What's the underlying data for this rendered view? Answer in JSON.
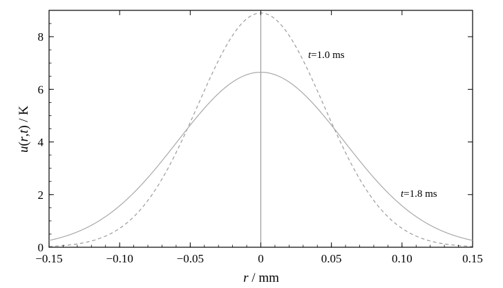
{
  "chart_data": {
    "type": "line",
    "xlabel": "r / mm",
    "ylabel": "u(r,t) / K",
    "xlim": [
      -0.15,
      0.15
    ],
    "ylim": [
      0,
      9
    ],
    "xticks": [
      -0.15,
      -0.1,
      -0.05,
      0,
      0.05,
      0.1,
      0.15
    ],
    "xtick_labels": [
      "−0.15",
      "−0.10",
      "−0.05",
      "0",
      "0.05",
      "0.10",
      "0.15"
    ],
    "yticks": [
      0,
      2,
      4,
      6,
      8
    ],
    "ytick_labels": [
      "0",
      "2",
      "4",
      "6",
      "8"
    ],
    "grid": false,
    "vertical_line_x": 0,
    "series": [
      {
        "name": "t=1.0 ms",
        "style": "dashed",
        "color": "#9a9a9a",
        "x": [
          -0.15,
          -0.12,
          -0.1,
          -0.08,
          -0.06,
          -0.05,
          -0.04,
          -0.02,
          0,
          0.02,
          0.04,
          0.05,
          0.06,
          0.08,
          0.1,
          0.12,
          0.15
        ],
        "y": [
          0.02,
          0.25,
          0.75,
          1.85,
          3.6,
          4.6,
          5.7,
          7.75,
          8.9,
          7.75,
          5.7,
          4.6,
          3.6,
          1.85,
          0.75,
          0.25,
          0.02
        ]
      },
      {
        "name": "t=1.8 ms",
        "style": "solid",
        "color": "#a8a8a8",
        "x": [
          -0.15,
          -0.12,
          -0.1,
          -0.08,
          -0.06,
          -0.05,
          -0.04,
          -0.02,
          0,
          0.02,
          0.04,
          0.05,
          0.06,
          0.08,
          0.1,
          0.12,
          0.15
        ],
        "y": [
          0.25,
          0.85,
          1.6,
          2.65,
          3.9,
          4.55,
          5.2,
          6.2,
          6.65,
          6.2,
          5.2,
          4.55,
          3.9,
          2.65,
          1.6,
          0.85,
          0.25
        ]
      }
    ],
    "annotations": [
      {
        "text": "t=1.0 ms",
        "series": 0
      },
      {
        "text": "t=1.8 ms",
        "series": 1
      }
    ]
  },
  "colors": {
    "axis": "#000000",
    "center_line": "#8c8c8c"
  }
}
